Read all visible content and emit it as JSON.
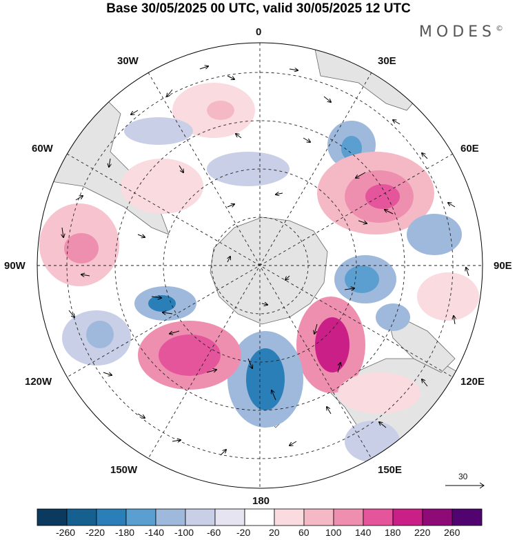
{
  "title": "Base 30/05/2025 00 UTC, valid 30/05/2025 12 UTC",
  "brand": "MODES",
  "brand_mark": "©",
  "longitude_labels": {
    "lon_0": "0",
    "lon_30e": "30E",
    "lon_60e": "60E",
    "lon_90e": "90E",
    "lon_120e": "120E",
    "lon_150e": "150E",
    "lon_180": "180",
    "lon_150w": "150W",
    "lon_120w": "120W",
    "lon_90w": "90W",
    "lon_60w": "60W",
    "lon_30w": "30W"
  },
  "reference_vector": {
    "label": "30"
  },
  "colorbar": {
    "colors": [
      "#0b3a5e",
      "#15608f",
      "#2b7fb8",
      "#5a9fcf",
      "#9fb9dc",
      "#c8cfe6",
      "#e6e4f1",
      "#ffffff",
      "#f9dbe0",
      "#f5b9c6",
      "#ef8fb0",
      "#e4559c",
      "#c91f86",
      "#8e0a77",
      "#51046f"
    ],
    "ticks": [
      "-260",
      "-220",
      "-180",
      "-140",
      "-100",
      "-60",
      "-20",
      "20",
      "60",
      "100",
      "140",
      "180",
      "220",
      "260"
    ]
  }
}
